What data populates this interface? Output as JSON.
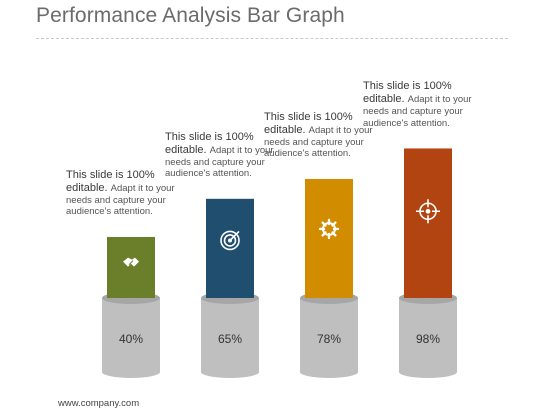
{
  "slide": {
    "title": "Performance Analysis Bar Graph",
    "footer": "www.company.com"
  },
  "chart_data": {
    "type": "bar",
    "title": "Performance Analysis Bar Graph",
    "categories": [
      "",
      "",
      "",
      ""
    ],
    "values": [
      40,
      65,
      78,
      98
    ],
    "value_labels": [
      "40%",
      "65%",
      "78%",
      "98%"
    ],
    "ylim": [
      0,
      100
    ],
    "grid": false,
    "legend": "none",
    "colors": [
      "#6b7f2a",
      "#1f4e6e",
      "#d28c00",
      "#b24411"
    ],
    "icons": [
      "handshake-icon",
      "target-icon",
      "gear-icon",
      "crosshair-icon"
    ],
    "annotations": [
      {
        "lead": "This slide is 100% editable.",
        "body": "Adapt it to your needs and capture your audience's attention."
      },
      {
        "lead": "This slide is 100% editable.",
        "body": "Adapt it to your needs and capture your audience's attention."
      },
      {
        "lead": "This slide is 100% editable.",
        "body": "Adapt it to your needs and capture your audience's attention."
      },
      {
        "lead": "This slide is 100% editable.",
        "body": "Adapt it to your needs and capture your audience's attention."
      }
    ]
  }
}
